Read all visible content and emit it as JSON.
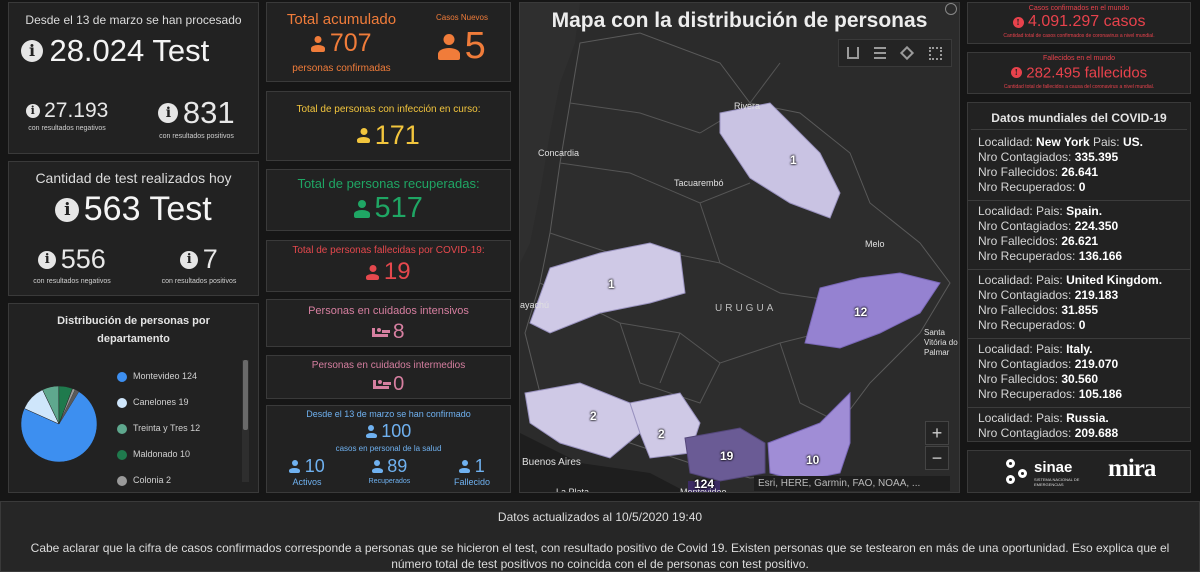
{
  "tests_total": {
    "header": "Desde el 13 de marzo se han procesado",
    "value": "28.024 Test",
    "negatives": "27.193",
    "negatives_label": "con resultados negativos",
    "positives": "831",
    "positives_label": "con resultados positivos"
  },
  "tests_today": {
    "title": "Cantidad de test realizados hoy",
    "value": "563 Test",
    "negatives": "556",
    "negatives_label": "con resultados negativos",
    "positives": "7",
    "positives_label": "con resultados positivos"
  },
  "distribution": {
    "title": "Distribución de personas por departamento",
    "items": [
      {
        "name": "Montevideo",
        "count": "124",
        "color": "#3d8ff0"
      },
      {
        "name": "Canelones",
        "count": "19",
        "color": "#cfe6fb"
      },
      {
        "name": "Treinta y Tres",
        "count": "12",
        "color": "#5fa88e"
      },
      {
        "name": "Maldonado",
        "count": "10",
        "color": "#1f7a4d"
      },
      {
        "name": "Colonia",
        "count": "2",
        "color": "#9a9a9a"
      }
    ]
  },
  "total": {
    "title": "Total acumulado",
    "value": "707",
    "label": "personas confirmadas",
    "new_title": "Casos Nuevos",
    "new_value": "5"
  },
  "active": {
    "title": "Total de personas con infección en curso:",
    "value": "171"
  },
  "recovered": {
    "title": "Total de personas recuperadas:",
    "value": "517"
  },
  "deaths": {
    "title": "Total de personas fallecidas por COVID-19:",
    "value": "19"
  },
  "icu": {
    "title": "Personas en cuidados intensivos",
    "value": "8"
  },
  "intermediate": {
    "title": "Personas en cuidados intermedios",
    "value": "0"
  },
  "health_staff": {
    "title": "Desde el 13 de marzo se han confirmado",
    "value": "100",
    "subtitle": "casos en personal de la salud",
    "active": "10",
    "active_label": "Activos",
    "recovered": "89",
    "recovered_label": "Recuperados",
    "deceased": "1",
    "deceased_label": "Fallecido"
  },
  "map": {
    "title": "Mapa con la distribución de personas",
    "attribution": "Esri, HERE, Garmin, FAO, NOAA, ...",
    "zoom_in": "+",
    "zoom_out": "−",
    "place_labels": [
      "Rivera",
      "Concardia",
      "Tacuarembó",
      "Melo",
      "URUGUA",
      "ayachú",
      "Santa Vitória do Palmar",
      "Buenos Aires",
      "La Plata",
      "Montevideo"
    ],
    "region_counts": [
      "1",
      "1",
      "12",
      "2",
      "2",
      "19",
      "10",
      "124"
    ]
  },
  "world_confirmed": {
    "title": "Casos confirmados en el mundo",
    "value": "4.091.297 casos",
    "caption": "Cantidad total de casos confirmados de coronavirus a nivel mundial."
  },
  "world_deaths": {
    "title": "Fallecidos en el mundo",
    "value": "282.495 fallecidos",
    "caption": "Cantidad total de fallecidos a causa del coronavirus a nivel mundial."
  },
  "world_list": {
    "title": "Datos mundiales del COVID-19",
    "items": [
      {
        "place": "New York",
        "country": "US.",
        "infected": "335.395",
        "deaths": "26.641",
        "recovered": "0"
      },
      {
        "place": "",
        "country": "Spain.",
        "infected": "224.350",
        "deaths": "26.621",
        "recovered": "136.166"
      },
      {
        "place": "",
        "country": "United Kingdom.",
        "infected": "219.183",
        "deaths": "31.855",
        "recovered": "0"
      },
      {
        "place": "",
        "country": "Italy.",
        "infected": "219.070",
        "deaths": "30.560",
        "recovered": "105.186"
      },
      {
        "place": "",
        "country": "Russia.",
        "infected": "209.688",
        "deaths": "",
        "recovered": ""
      }
    ],
    "labels": {
      "locality": "Localidad:",
      "country": "Pais:",
      "infected": "Nro Contagiados:",
      "deaths": "Nro Fallecidos:",
      "recovered": "Nro Recuperados:"
    }
  },
  "logos": {
    "sinae": "sinae",
    "sinae_sub": "SISTEMA NACIONAL DE EMERGENCIAS",
    "mira": "mira"
  },
  "footer": {
    "updated": "Datos actualizados al 10/5/2020 19:40",
    "note": "Cabe aclarar que la cifra de casos confirmados corresponde a personas que se hicieron el test, con resultado positivo de Covid 19. Existen personas que se testearon en más de una oportunidad. Eso explica que el número total de test positivos no coincida con el de personas con test positivo."
  },
  "colors": {
    "orange": "#f07c3a",
    "yellow": "#f2c53d",
    "green": "#1fa664",
    "red": "#e5484d",
    "pink": "#d67fa0",
    "blue": "#6fb1f0",
    "world_red": "#e8424c"
  }
}
